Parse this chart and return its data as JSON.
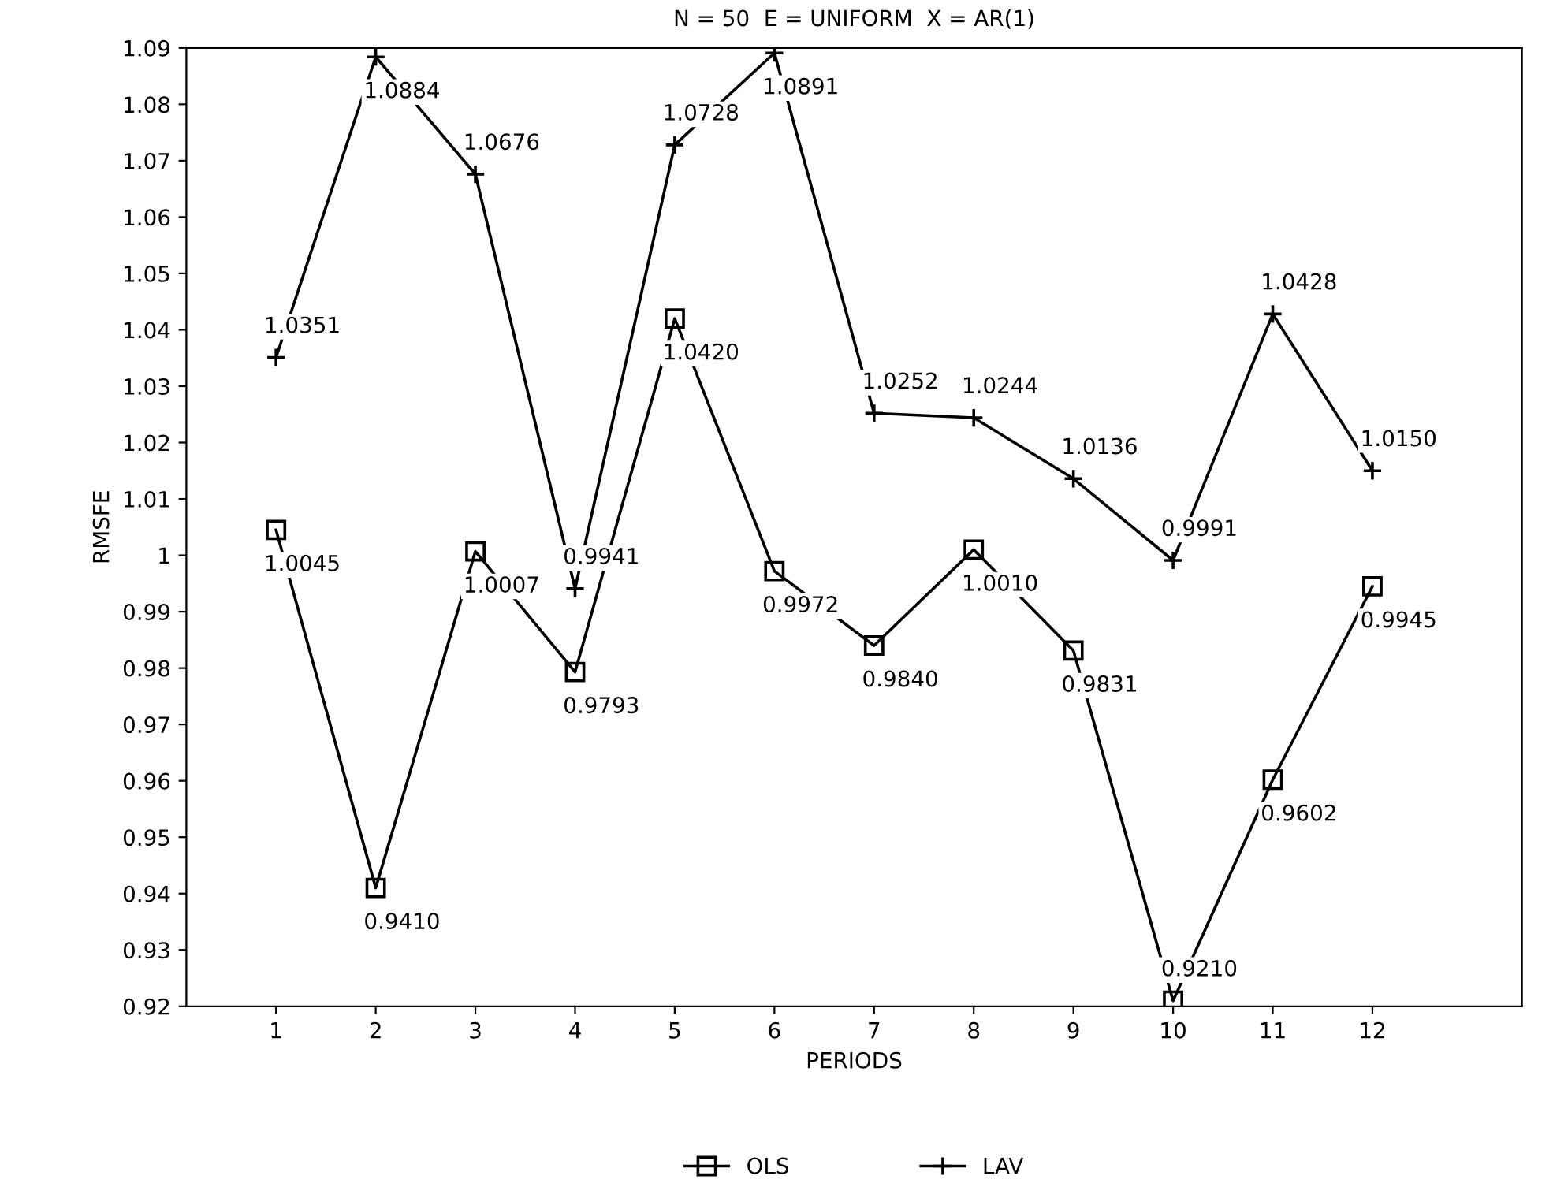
{
  "chart_data": {
    "type": "line",
    "title": "N = 50  E = UNIFORM  X = AR(1)",
    "xlabel": "PERIODS",
    "ylabel": "RMSFE",
    "categories": [
      "1",
      "2",
      "3",
      "4",
      "5",
      "6",
      "7",
      "8",
      "9",
      "10",
      "11",
      "12"
    ],
    "series": [
      {
        "name": "OLS",
        "color": "#000000",
        "marker": "square",
        "values": [
          1.0045,
          0.941,
          1.0007,
          0.9793,
          1.042,
          0.9972,
          0.984,
          1.001,
          0.9831,
          0.921,
          0.9602,
          0.9945
        ],
        "value_labels": [
          "1.0045",
          "0.9410",
          "1.0007",
          "0.9793",
          "1.0420",
          "0.9972",
          "0.9840",
          "1.0010",
          "0.9831",
          "0.9210",
          "0.9602",
          "0.9945"
        ]
      },
      {
        "name": "LAV",
        "color": "#000000",
        "marker": "cross",
        "values": [
          1.0351,
          1.0884,
          1.0676,
          0.9941,
          1.0728,
          1.0891,
          1.0252,
          1.0244,
          1.0136,
          0.9991,
          1.0428,
          1.015
        ],
        "value_labels": [
          "1.0351",
          "1.0884",
          "1.0676",
          "0.9941",
          "1.0728",
          "1.0891",
          "1.0252",
          "1.0244",
          "1.0136",
          "0.9991",
          "1.0428",
          "1.0150"
        ]
      }
    ],
    "ylim": [
      0.92,
      1.09
    ],
    "yticks": [
      0.92,
      0.93,
      0.94,
      0.95,
      0.96,
      0.97,
      0.98,
      0.99,
      1,
      1.01,
      1.02,
      1.03,
      1.04,
      1.05,
      1.06,
      1.07,
      1.08,
      1.09
    ],
    "grid": false,
    "legend": "bottom",
    "line_style": "solid"
  }
}
